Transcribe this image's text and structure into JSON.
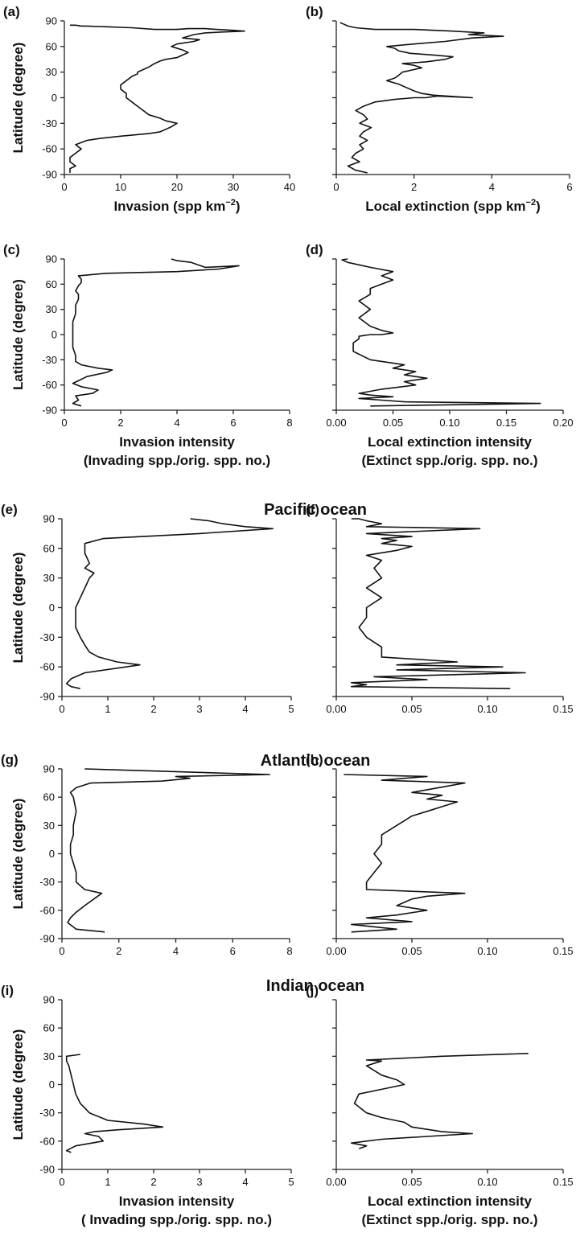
{
  "sections": {
    "pacific": "Pacific ocean",
    "atlantic": "Atlantic ocean",
    "indian": "Indian ocean"
  },
  "chart_data": [
    {
      "id": "a",
      "panel_label": "(a)",
      "type": "line",
      "ylabel": "Latitude (degree)",
      "xlabel_lines": [
        "Invasion (spp km",
        "−2",
        ")"
      ],
      "xlim": [
        0,
        40
      ],
      "ylim": [
        -90,
        90
      ],
      "xticks": [
        "0",
        "10",
        "20",
        "30",
        "40"
      ],
      "yticks": [
        "90",
        "60",
        "30",
        "0",
        "-30",
        "-60",
        "-90"
      ],
      "x": [
        1,
        1,
        2,
        1,
        1,
        2,
        3,
        2,
        4,
        6,
        10,
        15,
        17,
        18,
        19,
        20,
        18,
        17,
        15,
        14,
        13,
        12,
        11,
        11,
        10,
        10,
        11,
        12,
        13,
        13,
        14,
        15,
        16,
        17,
        18,
        20,
        21,
        22,
        21,
        19,
        20,
        23,
        24,
        21,
        22,
        23,
        25,
        28,
        32,
        30,
        27,
        25,
        22,
        20,
        16,
        12,
        8,
        4,
        3,
        2,
        1
      ],
      "y": [
        -88,
        -83,
        -80,
        -75,
        -70,
        -65,
        -60,
        -55,
        -50,
        -48,
        -45,
        -42,
        -40,
        -37,
        -34,
        -30,
        -27,
        -24,
        -20,
        -15,
        -10,
        -5,
        0,
        5,
        10,
        15,
        20,
        25,
        28,
        30,
        33,
        36,
        40,
        43,
        45,
        47,
        50,
        53,
        56,
        60,
        63,
        66,
        68,
        70,
        72,
        74,
        76,
        77,
        78,
        79,
        80,
        81,
        81,
        80,
        80,
        82,
        83,
        84,
        84,
        85,
        85
      ]
    },
    {
      "id": "b",
      "panel_label": "(b)",
      "type": "line",
      "ylabel": "",
      "xlabel_lines": [
        "Local extinction (spp km",
        "−2",
        ")"
      ],
      "xlim": [
        0,
        6
      ],
      "ylim": [
        -90,
        90
      ],
      "xticks": [
        "0",
        "2",
        "4",
        "6"
      ],
      "yticks": [],
      "x": [
        0.8,
        0.5,
        0.3,
        0.6,
        0.4,
        0.5,
        0.7,
        0.6,
        0.8,
        0.6,
        0.7,
        0.9,
        0.6,
        0.8,
        0.7,
        0.5,
        0.7,
        1.0,
        1.5,
        2.0,
        2.3,
        2.6,
        3.5,
        2.5,
        2.2,
        2.0,
        1.8,
        1.6,
        1.3,
        1.5,
        1.6,
        1.7,
        2.2,
        2.0,
        1.7,
        2.3,
        2.8,
        3.0,
        2.5,
        1.9,
        1.6,
        1.5,
        1.3,
        2.0,
        2.8,
        3.5,
        4.3,
        3.4,
        3.8,
        3.0,
        2.0,
        1.0,
        0.5,
        0.3,
        0.2,
        0.1
      ],
      "y": [
        -88,
        -85,
        -80,
        -75,
        -70,
        -65,
        -60,
        -55,
        -50,
        -45,
        -40,
        -35,
        -30,
        -25,
        -20,
        -15,
        -10,
        -5,
        -2,
        0,
        0,
        2,
        0,
        3,
        5,
        8,
        12,
        16,
        20,
        23,
        26,
        30,
        35,
        38,
        40,
        42,
        45,
        48,
        50,
        52,
        55,
        58,
        60,
        63,
        66,
        70,
        72,
        74,
        76,
        78,
        80,
        80,
        82,
        84,
        86,
        88
      ]
    },
    {
      "id": "c",
      "panel_label": "(c)",
      "type": "line",
      "ylabel": "Latitude (degree)",
      "xlabel_lines": [
        "Invasion intensity",
        "(Invading spp./orig. spp. no.)"
      ],
      "xlim": [
        0,
        8
      ],
      "ylim": [
        -90,
        90
      ],
      "xticks": [
        "0",
        "2",
        "4",
        "6",
        "8"
      ],
      "yticks": [
        "90",
        "60",
        "30",
        "0",
        "-30",
        "-60",
        "-90"
      ],
      "x": [
        0.6,
        0.3,
        0.5,
        0.4,
        1.0,
        1.2,
        0.6,
        0.3,
        0.5,
        0.8,
        1.5,
        1.7,
        1.2,
        0.6,
        0.4,
        0.4,
        0.3,
        0.3,
        0.3,
        0.3,
        0.4,
        0.4,
        0.5,
        0.5,
        0.4,
        0.5,
        0.6,
        0.6,
        0.5,
        1.5,
        4.0,
        5.5,
        6.2,
        5.0,
        4.5,
        4.0,
        3.8
      ],
      "y": [
        -85,
        -82,
        -78,
        -73,
        -70,
        -66,
        -62,
        -58,
        -55,
        -50,
        -45,
        -42,
        -40,
        -36,
        -32,
        -25,
        -15,
        -5,
        5,
        15,
        25,
        35,
        42,
        48,
        52,
        58,
        62,
        66,
        70,
        73,
        75,
        78,
        82,
        80,
        86,
        88,
        90
      ]
    },
    {
      "id": "d",
      "panel_label": "(d)",
      "type": "line",
      "ylabel": "",
      "xlabel_lines": [
        "Local extinction intensity",
        "(Extinct spp./orig. spp. no.)"
      ],
      "xlim": [
        0,
        0.2
      ],
      "ylim": [
        -90,
        90
      ],
      "xticks": [
        "0.00",
        "0.05",
        "0.10",
        "0.15",
        "0.20"
      ],
      "yticks": [],
      "x": [
        0.03,
        0.18,
        0.06,
        0.04,
        0.02,
        0.05,
        0.03,
        0.02,
        0.04,
        0.07,
        0.06,
        0.08,
        0.06,
        0.07,
        0.05,
        0.06,
        0.03,
        0.015,
        0.015,
        0.02,
        0.02,
        0.03,
        0.04,
        0.05,
        0.04,
        0.03,
        0.02,
        0.03,
        0.02,
        0.03,
        0.03,
        0.04,
        0.05,
        0.04,
        0.05,
        0.03,
        0.02,
        0.01,
        0.005,
        0.01
      ],
      "y": [
        -85,
        -82,
        -80,
        -78,
        -76,
        -74,
        -72,
        -70,
        -65,
        -60,
        -56,
        -52,
        -48,
        -44,
        -40,
        -36,
        -30,
        -20,
        -10,
        -5,
        -2,
        0,
        0,
        2,
        5,
        10,
        20,
        30,
        40,
        48,
        55,
        60,
        65,
        70,
        75,
        80,
        83,
        86,
        89,
        90
      ]
    },
    {
      "id": "e",
      "panel_label": "(e)",
      "type": "line",
      "ylabel": "Latitude (degree)",
      "xlabel_lines": [],
      "xlim": [
        0,
        5
      ],
      "ylim": [
        -90,
        90
      ],
      "xticks": [
        "0",
        "1",
        "2",
        "3",
        "4",
        "5"
      ],
      "yticks": [
        "90",
        "60",
        "30",
        "0",
        "-30",
        "-60",
        "-90"
      ],
      "x": [
        0.4,
        0.2,
        0.1,
        0.2,
        0.5,
        1.7,
        1.2,
        0.8,
        0.6,
        0.5,
        0.4,
        0.3,
        0.3,
        0.3,
        0.4,
        0.5,
        0.6,
        0.7,
        0.5,
        0.6,
        0.5,
        0.5,
        0.9,
        3.0,
        4.6,
        4.0,
        3.5,
        3.2,
        2.8
      ],
      "y": [
        -82,
        -80,
        -77,
        -72,
        -66,
        -58,
        -55,
        -50,
        -45,
        -38,
        -30,
        -20,
        -10,
        0,
        10,
        20,
        30,
        35,
        40,
        45,
        55,
        65,
        70,
        75,
        80,
        82,
        85,
        88,
        90
      ]
    },
    {
      "id": "f",
      "panel_label": "(f)",
      "type": "line",
      "ylabel": "",
      "xlabel_lines": [],
      "xlim": [
        0,
        0.15
      ],
      "ylim": [
        -90,
        90
      ],
      "xticks": [
        "0.00",
        "0.05",
        "0.10",
        "0.15"
      ],
      "yticks": [],
      "x": [
        0.115,
        0.01,
        0.02,
        0.01,
        0.06,
        0.025,
        0.125,
        0.04,
        0.11,
        0.04,
        0.08,
        0.03,
        0.03,
        0.02,
        0.015,
        0.02,
        0.02,
        0.03,
        0.02,
        0.03,
        0.025,
        0.03,
        0.02,
        0.04,
        0.05,
        0.03,
        0.04,
        0.03,
        0.05,
        0.02,
        0.095,
        0.02,
        0.03,
        0.02,
        0.015,
        0.01
      ],
      "y": [
        -82,
        -80,
        -78,
        -76,
        -73,
        -70,
        -66,
        -63,
        -60,
        -58,
        -55,
        -50,
        -40,
        -30,
        -20,
        -10,
        0,
        10,
        20,
        30,
        40,
        48,
        53,
        58,
        62,
        65,
        68,
        70,
        72,
        75,
        80,
        82,
        85,
        88,
        90,
        90
      ]
    },
    {
      "id": "g",
      "panel_label": "(g)",
      "type": "line",
      "ylabel": "Latitude (degree)",
      "xlabel_lines": [],
      "xlim": [
        0,
        8
      ],
      "ylim": [
        -90,
        90
      ],
      "xticks": [
        "0",
        "2",
        "4",
        "6",
        "8"
      ],
      "yticks": [
        "90",
        "60",
        "30",
        "0",
        "-30",
        "-60",
        "-90"
      ],
      "x": [
        1.5,
        0.5,
        0.2,
        0.3,
        0.5,
        0.8,
        1.4,
        0.8,
        0.5,
        0.5,
        0.4,
        0.3,
        0.3,
        0.4,
        0.4,
        0.5,
        0.4,
        0.3,
        0.5,
        1.0,
        3.5,
        4.5,
        4.0,
        7.3,
        0.8
      ],
      "y": [
        -83,
        -80,
        -73,
        -68,
        -62,
        -55,
        -42,
        -38,
        -30,
        -20,
        -10,
        0,
        10,
        20,
        30,
        45,
        60,
        65,
        70,
        75,
        77,
        80,
        82,
        84,
        90
      ]
    },
    {
      "id": "h",
      "panel_label": "(h)",
      "type": "line",
      "ylabel": "",
      "xlabel_lines": [],
      "xlim": [
        0,
        0.15
      ],
      "ylim": [
        -90,
        90
      ],
      "xticks": [
        "0.00",
        "0.05",
        "0.10",
        "0.15"
      ],
      "yticks": [],
      "x": [
        0.01,
        0.04,
        0.01,
        0.05,
        0.02,
        0.04,
        0.06,
        0.04,
        0.05,
        0.06,
        0.085,
        0.02,
        0.02,
        0.025,
        0.03,
        0.025,
        0.03,
        0.03,
        0.04,
        0.05,
        0.06,
        0.07,
        0.08,
        0.06,
        0.07,
        0.05,
        0.085,
        0.03,
        0.06,
        0.005
      ],
      "y": [
        -83,
        -80,
        -75,
        -72,
        -68,
        -65,
        -60,
        -55,
        -48,
        -45,
        -42,
        -38,
        -30,
        -20,
        -10,
        0,
        10,
        20,
        30,
        40,
        45,
        50,
        55,
        58,
        62,
        65,
        75,
        78,
        82,
        84
      ]
    },
    {
      "id": "i",
      "panel_label": "(i)",
      "type": "line",
      "ylabel": "Latitude (degree)",
      "xlabel_lines": [
        "Invasion intensity",
        "( Invading spp./orig. spp. no.)"
      ],
      "xlim": [
        0,
        5
      ],
      "ylim": [
        -90,
        90
      ],
      "xticks": [
        "0",
        "1",
        "2",
        "3",
        "4",
        "5"
      ],
      "yticks": [
        "90",
        "60",
        "30",
        "0",
        "-30",
        "-60",
        "-90"
      ],
      "x": [
        0.2,
        0.1,
        0.3,
        0.9,
        0.8,
        0.5,
        0.7,
        1.2,
        2.2,
        1.8,
        1.0,
        0.6,
        0.4,
        0.3,
        0.25,
        0.2,
        0.15,
        0.1,
        0.1,
        0.4
      ],
      "y": [
        -72,
        -70,
        -65,
        -60,
        -55,
        -52,
        -50,
        -48,
        -45,
        -42,
        -38,
        -30,
        -20,
        -10,
        0,
        10,
        20,
        25,
        30,
        32
      ]
    },
    {
      "id": "j",
      "panel_label": "(j)",
      "type": "line",
      "ylabel": "",
      "xlabel_lines": [
        "Local extinction intensity",
        "(Extinct spp./orig. spp. no.)"
      ],
      "xlim": [
        0,
        0.15
      ],
      "ylim": [
        -90,
        90
      ],
      "xticks": [
        "0.00",
        "0.05",
        "0.10",
        "0.15"
      ],
      "yticks": [],
      "x": [
        0.015,
        0.02,
        0.01,
        0.03,
        0.06,
        0.09,
        0.07,
        0.05,
        0.045,
        0.03,
        0.02,
        0.012,
        0.015,
        0.03,
        0.045,
        0.04,
        0.03,
        0.025,
        0.02,
        0.03,
        0.02,
        0.07,
        0.127
      ],
      "y": [
        -68,
        -65,
        -62,
        -58,
        -55,
        -52,
        -50,
        -45,
        -40,
        -35,
        -30,
        -20,
        -10,
        -5,
        0,
        5,
        10,
        15,
        20,
        25,
        26,
        30,
        33
      ]
    }
  ]
}
